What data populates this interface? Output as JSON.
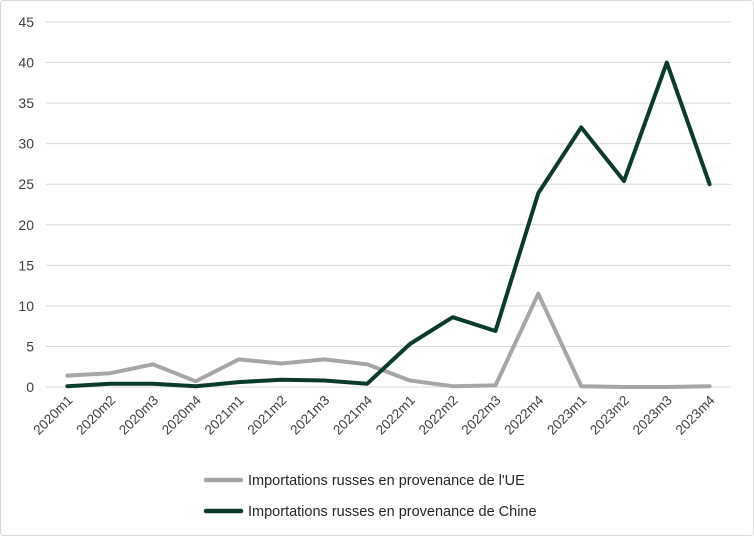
{
  "chart_data": {
    "type": "line",
    "categories": [
      "2020m1",
      "2020m2",
      "2020m3",
      "2020m4",
      "2021m1",
      "2021m2",
      "2021m3",
      "2021m4",
      "2022m1",
      "2022m2",
      "2022m3",
      "2022m4",
      "2023m1",
      "2023m2",
      "2023m3",
      "2023m4"
    ],
    "series": [
      {
        "name": "Importations russes en provenance de l'UE",
        "color": "#a6a6a6",
        "values": [
          1.4,
          1.7,
          2.8,
          0.7,
          3.4,
          2.9,
          3.4,
          2.8,
          0.8,
          0.1,
          0.2,
          11.5,
          0.1,
          0.0,
          0.0,
          0.1
        ]
      },
      {
        "name": "Importations russes en provenance de Chine",
        "color": "#0b3b2e",
        "values": [
          0.1,
          0.4,
          0.4,
          0.1,
          0.6,
          0.9,
          0.8,
          0.4,
          5.3,
          8.6,
          6.9,
          23.9,
          32.0,
          25.4,
          40.0,
          25.0
        ]
      }
    ],
    "y_ticks": [
      "0",
      "5",
      "10",
      "15",
      "20",
      "25",
      "30",
      "35",
      "40",
      "45"
    ],
    "ylim": [
      0,
      45
    ],
    "title": "",
    "xlabel": "",
    "ylabel": "",
    "grid": "horizontal",
    "legend_position": "bottom"
  }
}
